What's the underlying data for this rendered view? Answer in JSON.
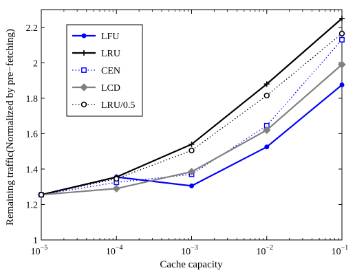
{
  "chart_data": {
    "type": "line",
    "title": "",
    "xlabel": "Cache capacity",
    "ylabel": "Remaining traffic(Normalized by pre−fetching)",
    "x_scale": "log",
    "xlim": [
      1e-05,
      0.1
    ],
    "ylim": [
      1,
      2.3
    ],
    "grid": false,
    "legend_position": "top-left",
    "x": [
      1e-05,
      0.0001,
      0.001,
      0.01,
      0.1
    ],
    "x_ticks": [
      {
        "base": "10",
        "exp": "−5"
      },
      {
        "base": "10",
        "exp": "−4"
      },
      {
        "base": "10",
        "exp": "−3"
      },
      {
        "base": "10",
        "exp": "−2"
      },
      {
        "base": "10",
        "exp": "−1"
      }
    ],
    "y_ticks": [
      {
        "value": 1,
        "label": "1"
      },
      {
        "value": 1.2,
        "label": "1.2"
      },
      {
        "value": 1.4,
        "label": "1.4"
      },
      {
        "value": 1.6,
        "label": "1.6"
      },
      {
        "value": 1.8,
        "label": "1.8"
      },
      {
        "value": 2,
        "label": "2"
      },
      {
        "value": 2.2,
        "label": "2.2"
      }
    ],
    "series": [
      {
        "name": "LFU",
        "values": [
          1.255,
          1.355,
          1.305,
          1.525,
          1.875
        ],
        "color": "#0000ff",
        "line_style": "solid",
        "marker": "filled-circle"
      },
      {
        "name": "LRU",
        "values": [
          1.255,
          1.355,
          1.54,
          1.88,
          2.25
        ],
        "color": "#000000",
        "line_style": "solid",
        "marker": "plus"
      },
      {
        "name": "CEN",
        "values": [
          1.255,
          1.325,
          1.37,
          1.645,
          2.13
        ],
        "color": "#0000ff",
        "line_style": "dotted",
        "marker": "open-square"
      },
      {
        "name": "LCD",
        "values": [
          1.255,
          1.29,
          1.385,
          1.62,
          1.99
        ],
        "color": "#808080",
        "line_style": "solid",
        "marker": "diamond"
      },
      {
        "name": "LRU/0.5",
        "values": [
          1.255,
          1.345,
          1.505,
          1.815,
          2.165
        ],
        "color": "#000000",
        "line_style": "dotted",
        "marker": "open-circle"
      }
    ]
  }
}
